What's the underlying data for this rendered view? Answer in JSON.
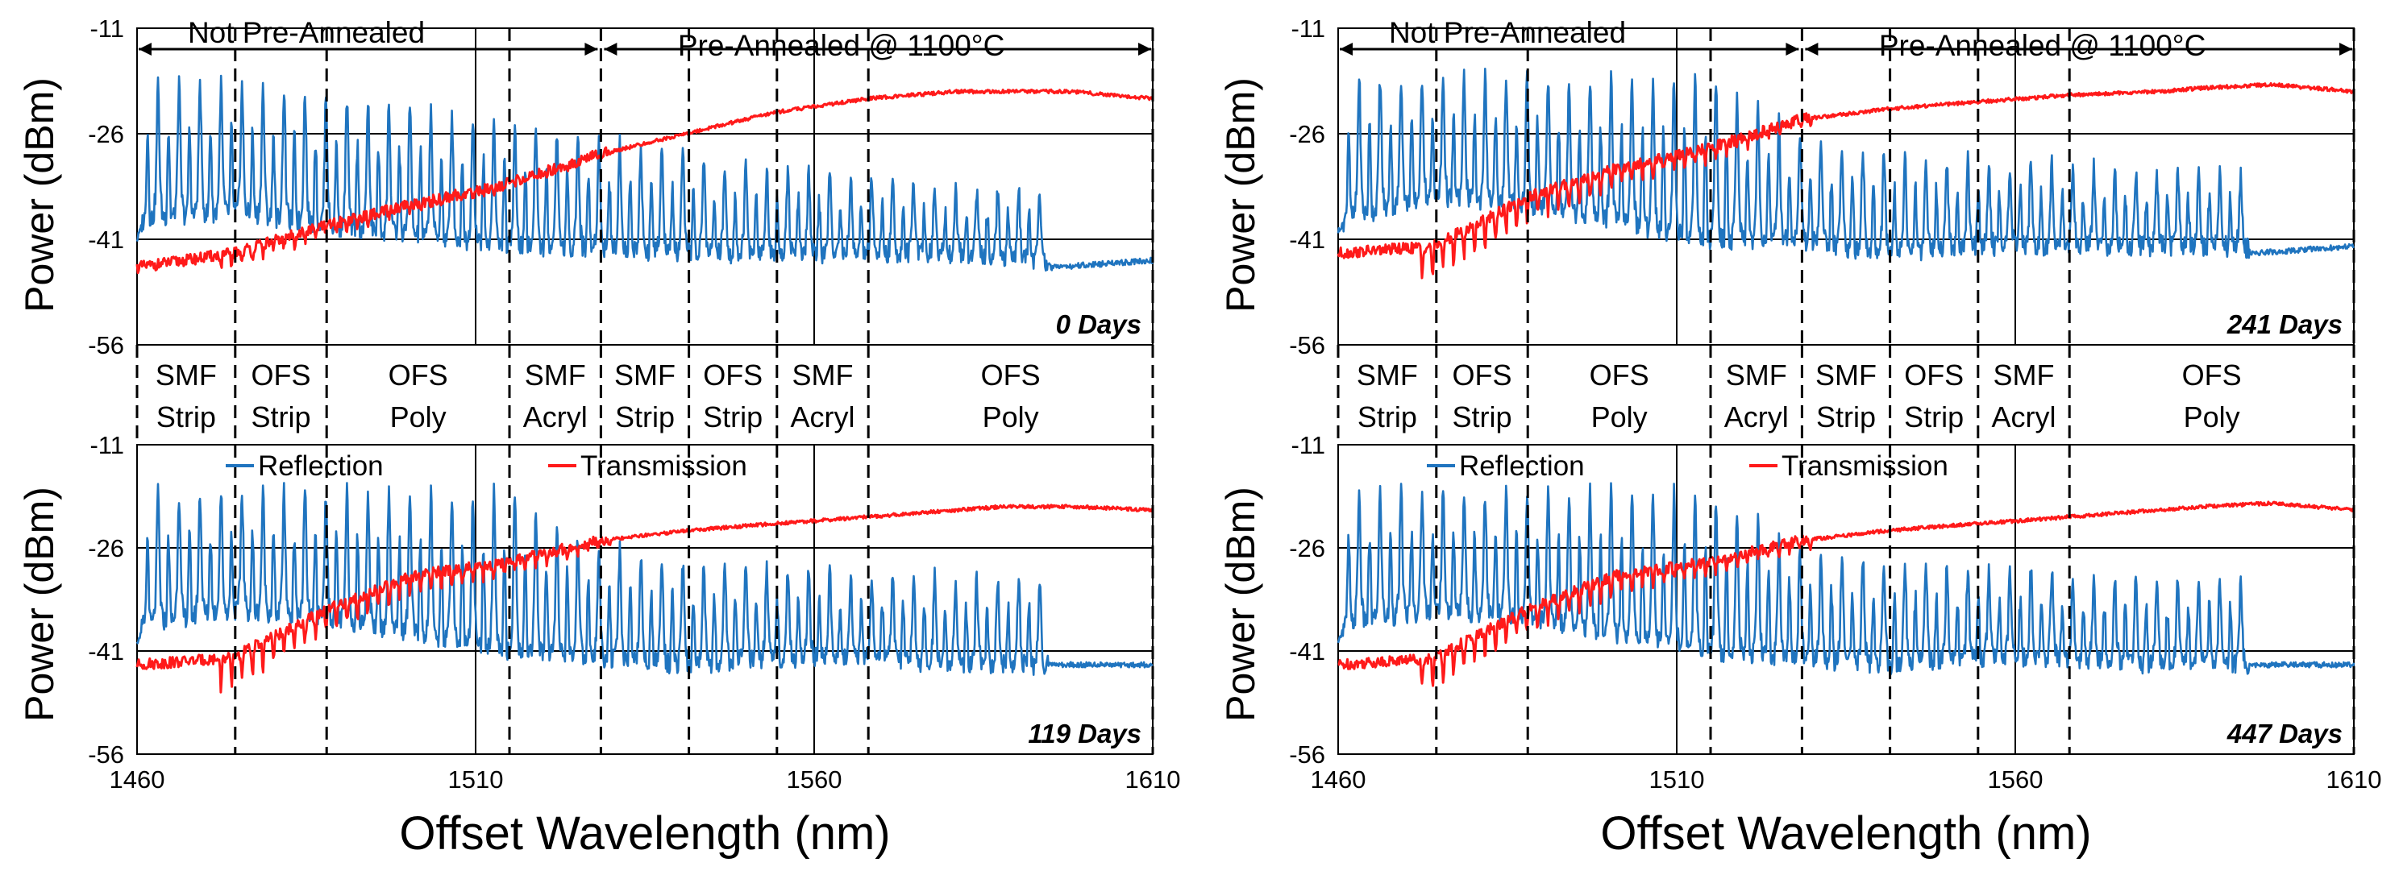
{
  "figure": {
    "x_axis_label": "Offset Wavelength (nm)",
    "y_axis_label": "Power (dBm)",
    "x_ticks": [
      1460,
      1510,
      1560,
      1610
    ],
    "y_ticks": [
      -11,
      -26,
      -41,
      -56
    ],
    "xlim": [
      1460,
      1610
    ],
    "ylim": [
      -56,
      -11
    ],
    "section_left": "Not Pre-Annealed",
    "section_right": "Pre-Annealed @ 1100°C",
    "legend_reflection": "Reflection",
    "legend_transmission": "Transmission",
    "colors": {
      "reflection": "#1f74bf",
      "transmission": "#ff1a1a"
    },
    "segments": [
      {
        "line1": "SMF",
        "line2": "Strip",
        "start": 1460,
        "end": 1474.5
      },
      {
        "line1": "OFS",
        "line2": "Strip",
        "start": 1474.5,
        "end": 1488
      },
      {
        "line1": "OFS",
        "line2": "Poly",
        "start": 1488,
        "end": 1515
      },
      {
        "line1": "SMF",
        "line2": "Acryl",
        "start": 1515,
        "end": 1528.5
      },
      {
        "line1": "SMF",
        "line2": "Strip",
        "start": 1528.5,
        "end": 1541.5
      },
      {
        "line1": "OFS",
        "line2": "Strip",
        "start": 1541.5,
        "end": 1554.5
      },
      {
        "line1": "SMF",
        "line2": "Acryl",
        "start": 1554.5,
        "end": 1568
      },
      {
        "line1": "OFS",
        "line2": "Poly",
        "start": 1568,
        "end": 1610
      }
    ]
  },
  "chart_data": [
    {
      "type": "line",
      "title": "0 Days",
      "xlabel": "Offset Wavelength (nm)",
      "ylabel": "Power (dBm)",
      "xlim": [
        1460,
        1610
      ],
      "ylim": [
        -56,
        -11
      ],
      "series": [
        {
          "name": "Reflection",
          "x": [
            1460,
            1461,
            1474,
            1488,
            1515,
            1528,
            1541,
            1554,
            1568,
            1581,
            1594,
            1595,
            1610
          ],
          "peaks": [
            -19,
            -19,
            -19,
            -20.5,
            -24,
            -27,
            -29,
            -31,
            -32.5,
            -34,
            -34,
            -45,
            -44
          ],
          "floor": [
            -41,
            -38,
            -37,
            -39,
            -42,
            -42,
            -43,
            -43,
            -43,
            -43,
            -44,
            -45,
            -44
          ]
        },
        {
          "name": "Transmission",
          "x": [
            1460,
            1474,
            1488,
            1501,
            1515,
            1528,
            1541,
            1554,
            1568,
            1581,
            1588,
            1598,
            1610
          ],
          "y": [
            -45,
            -43,
            -39,
            -36,
            -33,
            -29,
            -26,
            -23,
            -21,
            -20,
            -20,
            -20,
            -21
          ]
        }
      ]
    },
    {
      "type": "line",
      "title": "241 Days",
      "xlabel": "Offset Wavelength (nm)",
      "ylabel": "Power (dBm)",
      "xlim": [
        1460,
        1610
      ],
      "ylim": [
        -56,
        -11
      ],
      "series": [
        {
          "name": "Reflection",
          "x": [
            1460,
            1461,
            1474,
            1488,
            1515,
            1528,
            1541,
            1554,
            1568,
            1581,
            1594,
            1595,
            1610
          ],
          "peaks": [
            -18,
            -18,
            -18,
            -18,
            -18,
            -26,
            -29,
            -30,
            -30.5,
            -31.5,
            -32,
            -43,
            -42
          ],
          "floor": [
            -40,
            -38,
            -35,
            -36,
            -41,
            -41,
            -43,
            -42,
            -42,
            -42,
            -42,
            -43,
            -42
          ]
        },
        {
          "name": "Transmission",
          "x": [
            1460,
            1474,
            1488,
            1501,
            1515,
            1528,
            1541,
            1554,
            1568,
            1581,
            1588,
            1598,
            1610
          ],
          "y": [
            -43,
            -42,
            -35,
            -31,
            -28,
            -24,
            -22.5,
            -21.5,
            -20.5,
            -20,
            -19.5,
            -19,
            -20
          ]
        }
      ]
    },
    {
      "type": "line",
      "title": "119 Days",
      "xlabel": "Offset Wavelength (nm)",
      "ylabel": "Power (dBm)",
      "xlim": [
        1460,
        1610
      ],
      "ylim": [
        -56,
        -11
      ],
      "series": [
        {
          "name": "Reflection",
          "x": [
            1460,
            1461,
            1474,
            1488,
            1515,
            1528,
            1541,
            1554,
            1568,
            1581,
            1594,
            1595,
            1610
          ],
          "peaks": [
            -18,
            -18,
            -18,
            -18,
            -18,
            -26,
            -28,
            -29,
            -29.5,
            -30.5,
            -30.5,
            -43,
            -43
          ],
          "floor": [
            -40,
            -37,
            -35,
            -36,
            -41,
            -42,
            -43,
            -42,
            -42,
            -43,
            -43,
            -43,
            -43
          ]
        },
        {
          "name": "Transmission",
          "x": [
            1460,
            1474,
            1488,
            1501,
            1515,
            1528,
            1541,
            1554,
            1568,
            1581,
            1588,
            1598,
            1610
          ],
          "y": [
            -43,
            -42,
            -35,
            -30,
            -28,
            -25,
            -23.5,
            -22.5,
            -21.5,
            -20.5,
            -20,
            -20,
            -20.5
          ]
        }
      ]
    },
    {
      "type": "line",
      "title": "447 Days",
      "xlabel": "Offset Wavelength (nm)",
      "ylabel": "Power (dBm)",
      "xlim": [
        1460,
        1610
      ],
      "ylim": [
        -56,
        -11
      ],
      "series": [
        {
          "name": "Reflection",
          "x": [
            1460,
            1461,
            1474,
            1488,
            1515,
            1528,
            1541,
            1554,
            1568,
            1581,
            1594,
            1595,
            1610
          ],
          "peaks": [
            -18,
            -18,
            -18,
            -18,
            -18,
            -26,
            -28,
            -29,
            -29.5,
            -30.5,
            -30.5,
            -43,
            -43
          ],
          "floor": [
            -40,
            -37,
            -35,
            -36,
            -41,
            -42,
            -43,
            -42,
            -42,
            -43,
            -43,
            -43,
            -43
          ]
        },
        {
          "name": "Transmission",
          "x": [
            1460,
            1474,
            1488,
            1501,
            1515,
            1528,
            1541,
            1554,
            1568,
            1581,
            1588,
            1598,
            1610
          ],
          "y": [
            -43,
            -42,
            -35,
            -30,
            -28,
            -25,
            -23.5,
            -22.5,
            -21.5,
            -20.5,
            -20,
            -19.5,
            -20.5
          ]
        }
      ]
    }
  ]
}
